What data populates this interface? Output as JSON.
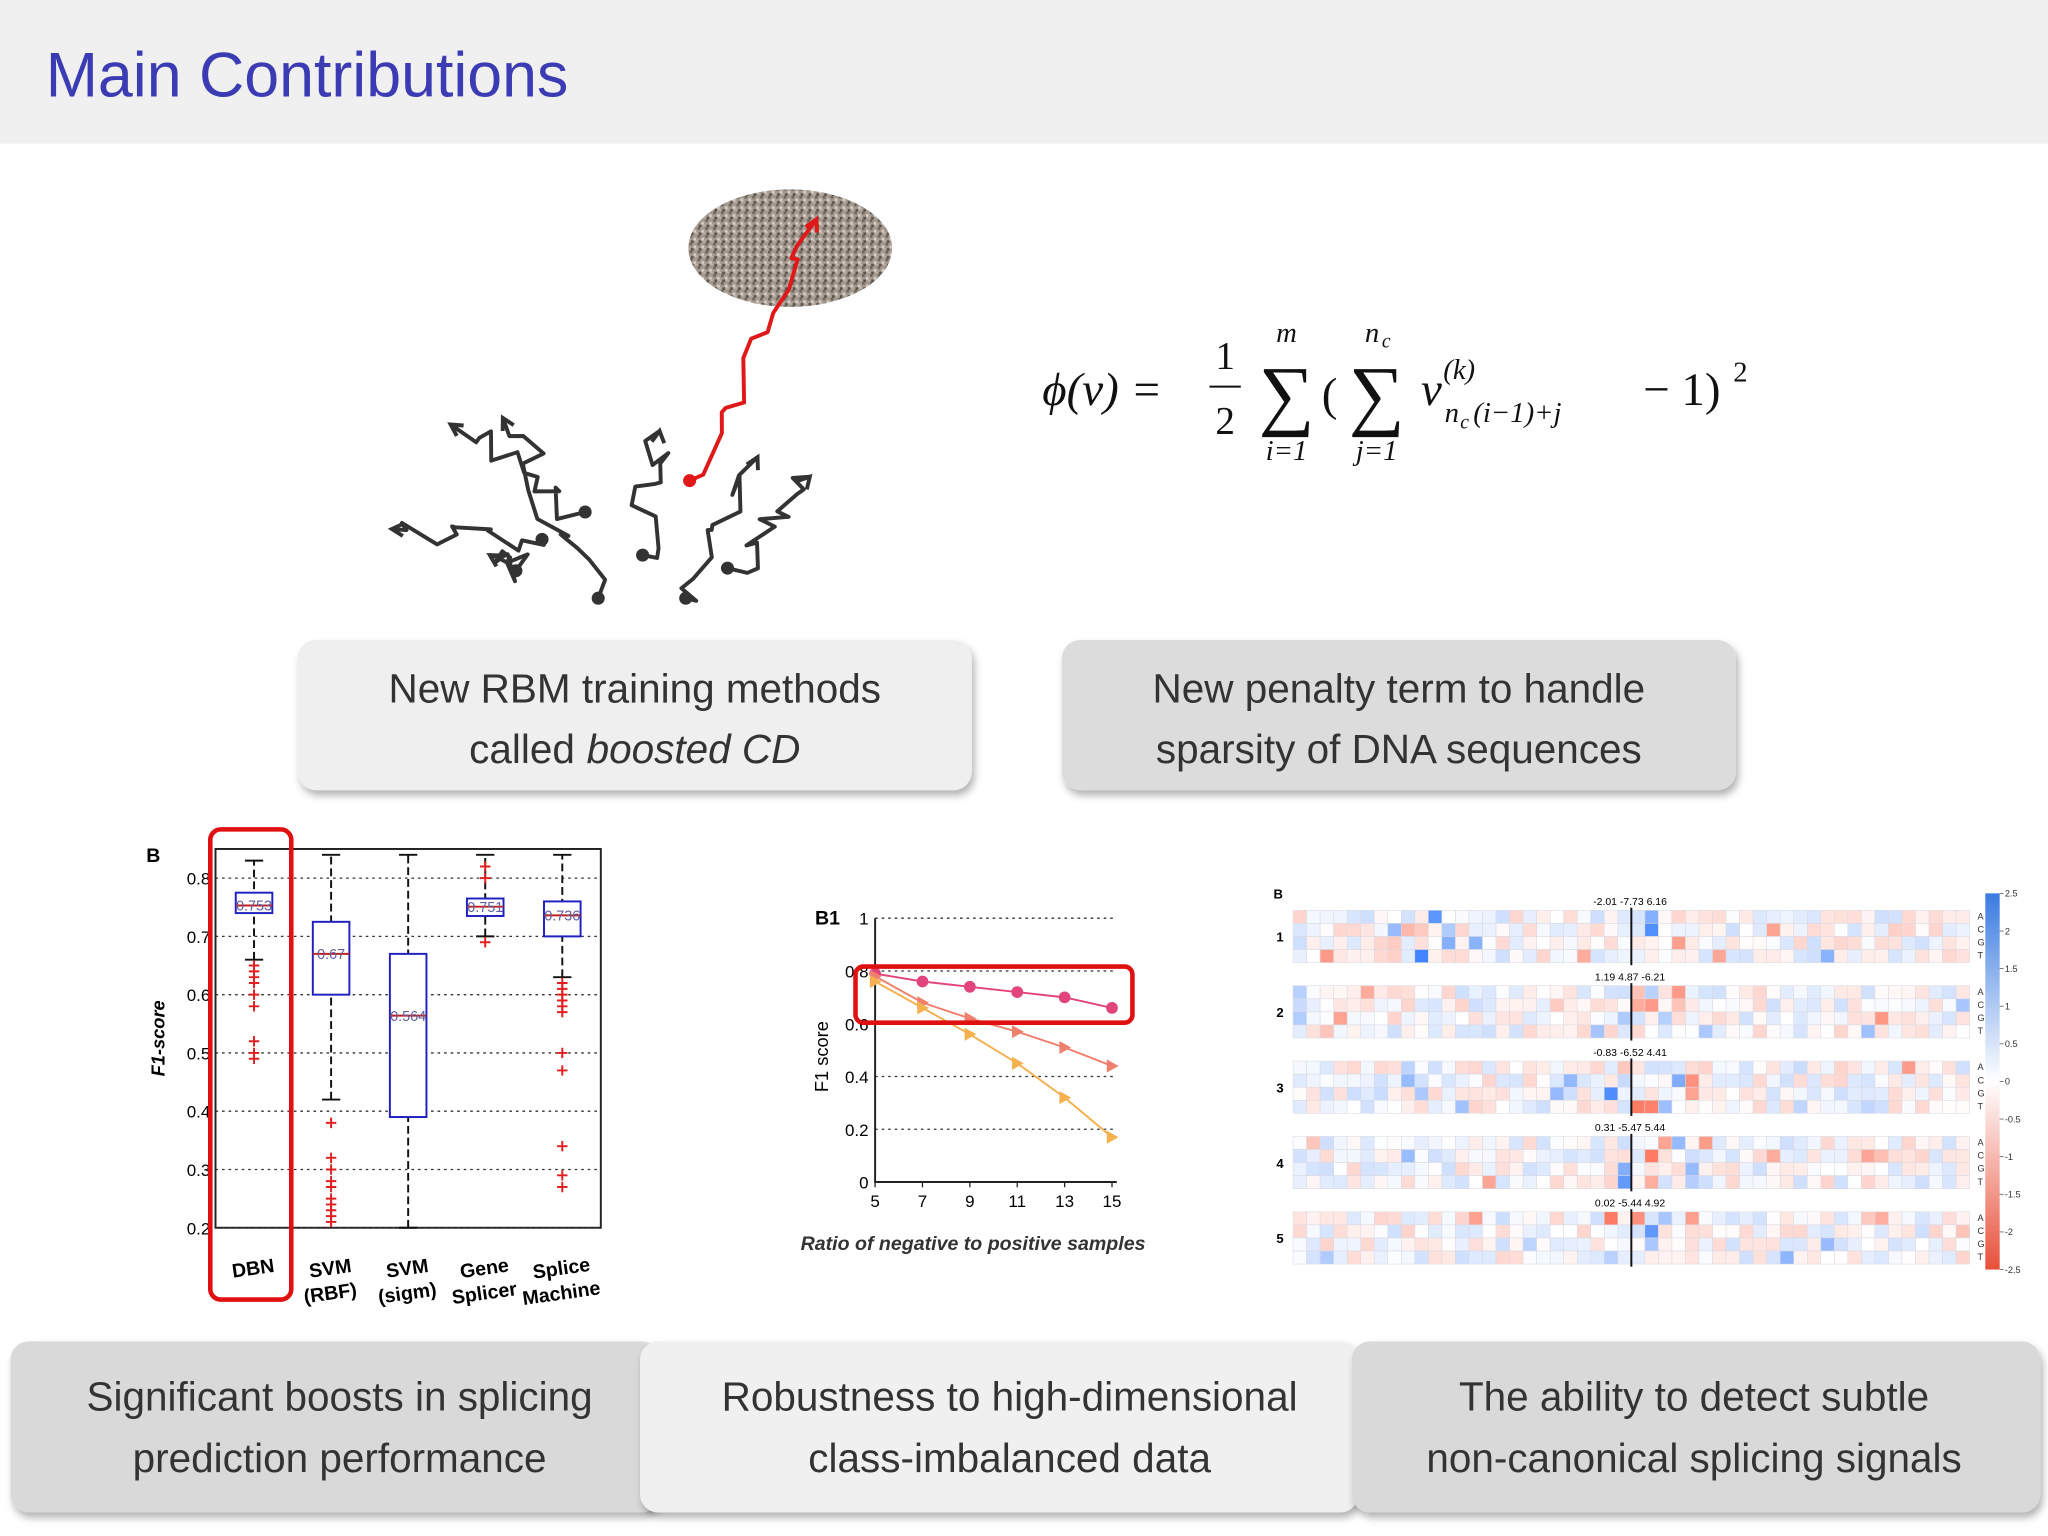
{
  "title": "Main Contributions",
  "formula": {
    "lhs": "ϕ(v) =",
    "num": "1",
    "den": "2",
    "outer_symbol": "∑",
    "outer_top": "m",
    "outer_bottom": "i=1",
    "open": "(",
    "inner_symbol": "∑",
    "inner_top": "n",
    "inner_top_sub": "c",
    "inner_bottom": "j=1",
    "term": "v",
    "term_sup": "(k)",
    "term_sub": "n",
    "term_sub_sub": "c",
    "term_sub_rest": "(i−1)+j",
    "tail": "− 1)",
    "tail_sup": "2"
  },
  "captions": {
    "rbm": {
      "line1": "New RBM training methods",
      "line2_plain": "called",
      "line2_italic": "boosted CD"
    },
    "penalty": {
      "line1": "New penalty term to handle",
      "line2": "sparsity of DNA sequences"
    },
    "boosts": {
      "line1": "Significant boosts in splicing",
      "line2": "prediction performance"
    },
    "robust": {
      "line1": "Robustness to high-dimensional",
      "line2": "class-imbalanced data"
    },
    "subtle": {
      "line1": "The ability to detect subtle",
      "line2": "non-canonical splicing signals"
    }
  },
  "boxplot": {
    "panel": "B",
    "ylabel": "F1-score",
    "ylim": [
      0.2,
      0.85
    ],
    "yticks": [
      0.2,
      0.3,
      0.4,
      0.5,
      0.6,
      0.7,
      0.8
    ],
    "categories": [
      [
        "DBN"
      ],
      [
        "SVM",
        "(RBF)"
      ],
      [
        "SVM",
        "(sigm)"
      ],
      [
        "Gene",
        "Splicer"
      ],
      [
        "Splice",
        "Machine"
      ]
    ],
    "boxes": [
      {
        "whisker_low": 0.66,
        "q1": 0.74,
        "median": 0.753,
        "q3": 0.775,
        "whisker_high": 0.83,
        "outliers": [
          0.65,
          0.64,
          0.63,
          0.62,
          0.6,
          0.58,
          0.52,
          0.5,
          0.49
        ]
      },
      {
        "whisker_low": 0.42,
        "q1": 0.6,
        "median": 0.67,
        "q3": 0.725,
        "whisker_high": 0.84,
        "outliers": [
          0.38,
          0.32,
          0.3,
          0.28,
          0.27,
          0.25,
          0.24,
          0.23,
          0.22,
          0.21
        ]
      },
      {
        "whisker_low": 0.2,
        "q1": 0.39,
        "median": 0.564,
        "q3": 0.67,
        "whisker_high": 0.84,
        "outliers": []
      },
      {
        "whisker_low": 0.7,
        "q1": 0.735,
        "median": 0.751,
        "q3": 0.765,
        "whisker_high": 0.84,
        "outliers": [
          0.82,
          0.8,
          0.69
        ]
      },
      {
        "whisker_low": 0.63,
        "q1": 0.7,
        "median": 0.736,
        "q3": 0.76,
        "whisker_high": 0.84,
        "outliers": [
          0.62,
          0.61,
          0.6,
          0.59,
          0.58,
          0.57,
          0.5,
          0.47,
          0.34,
          0.29,
          0.27
        ]
      }
    ]
  },
  "linechart": {
    "panel": "B1",
    "ylabel": "F1 score",
    "xlabel": "Ratio of negative to positive samples",
    "x": [
      5,
      7,
      9,
      11,
      13,
      15
    ],
    "xlim": [
      5,
      15.2
    ],
    "xticks": [
      5,
      7,
      9,
      11,
      13,
      15
    ],
    "ylim": [
      0,
      1
    ],
    "yticks": [
      0,
      0.2,
      0.4,
      0.6,
      0.8,
      1
    ],
    "series": [
      {
        "color": "#e2457c",
        "marker": "circle",
        "values": [
          0.79,
          0.76,
          0.74,
          0.72,
          0.7,
          0.66
        ]
      },
      {
        "color": "#f0806e",
        "marker": "triangle",
        "values": [
          0.78,
          0.68,
          0.62,
          0.57,
          0.51,
          0.44
        ]
      },
      {
        "color": "#f5b050",
        "marker": "triangle",
        "values": [
          0.76,
          0.66,
          0.56,
          0.45,
          0.32,
          0.17
        ]
      }
    ]
  },
  "heatmap": {
    "panel": "B",
    "bases": [
      "A",
      "C",
      "G",
      "T"
    ],
    "rows": [
      {
        "label": "1",
        "annotation": "-2.01 -7.73 6.16"
      },
      {
        "label": "2",
        "annotation": "1.19 4.87 -6.21"
      },
      {
        "label": "3",
        "annotation": "-0.83 -6.52 4.41"
      },
      {
        "label": "4",
        "annotation": "0.31 -5.47 5.44"
      },
      {
        "label": "5",
        "annotation": "0.02 -5.44 4.92"
      }
    ],
    "colorbar_lim": [
      -2.5,
      2.5
    ],
    "colorbar_ticks": [
      2.5,
      2,
      1.5,
      1,
      0.5,
      0,
      -0.5,
      -1,
      -1.5,
      -2,
      -2.5
    ]
  }
}
